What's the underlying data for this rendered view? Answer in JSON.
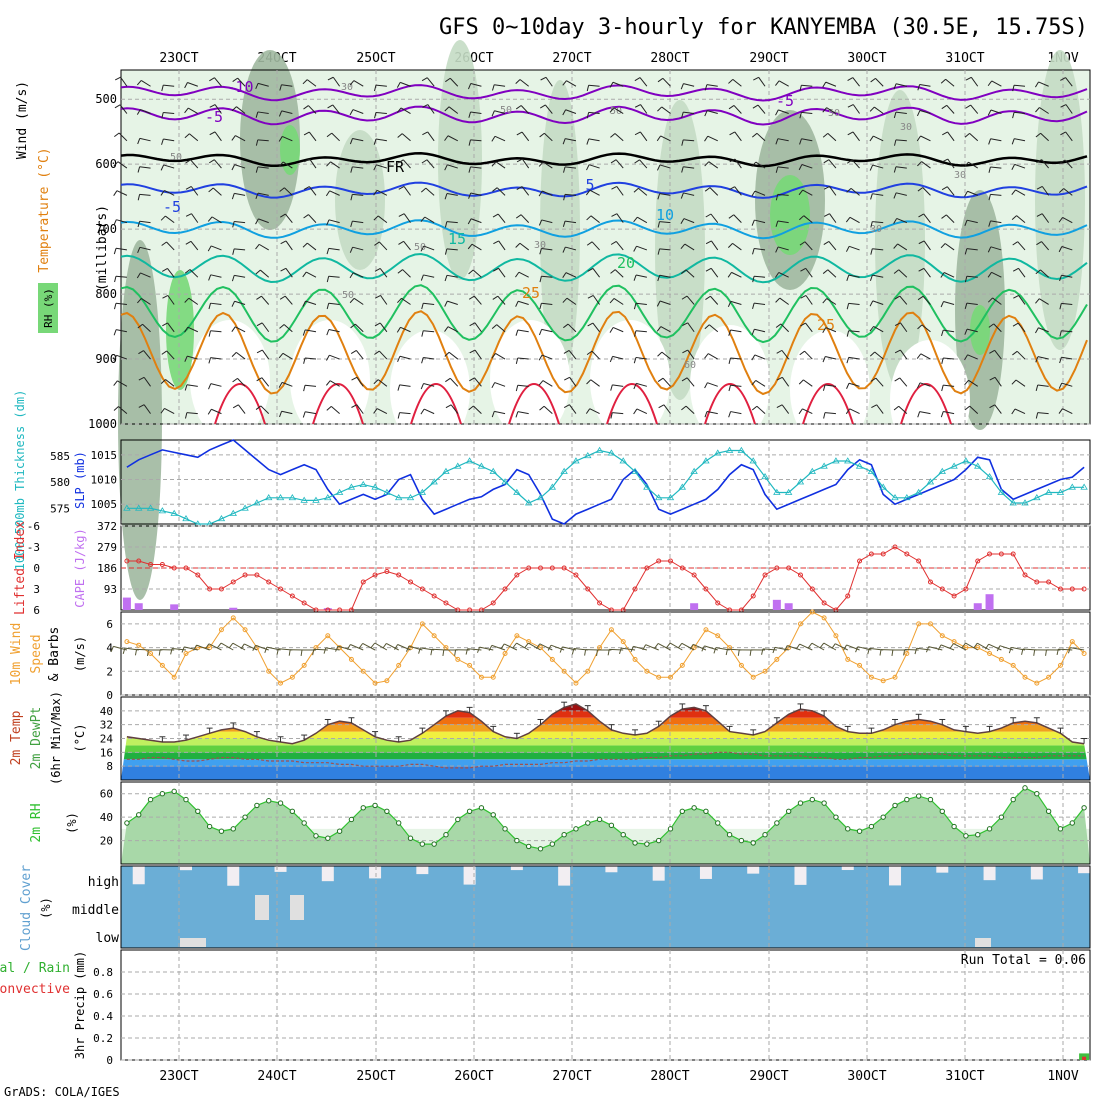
{
  "title": "GFS 0~10day 3-hourly for KANYEMBA (30.5E, 15.75S)",
  "credit": "GrADS: COLA/IGES",
  "days": [
    "23OCT",
    "24OCT",
    "25OCT",
    "26OCT",
    "27OCT",
    "28OCT",
    "29OCT",
    "30OCT",
    "31OCT",
    "1NOV"
  ],
  "colors": {
    "rh_light": "#e6f4e6",
    "rh_mid": "#c4dcc4",
    "rh_dark": "#a0b8a0",
    "rh_green": "#78d878",
    "temp_purple": "#8000c0",
    "temp_blue": "#2040e0",
    "temp_cyan": "#10a0e0",
    "temp_teal": "#10b8a0",
    "temp_green": "#20c060",
    "temp_orange": "#e08010",
    "temp_red": "#e02040",
    "slp_blue": "#1030e0",
    "thick_cyan": "#20b8c0",
    "li_red": "#e03030",
    "cape_purple": "#c070f0",
    "wind_orange": "#f0a030",
    "cloud_blue": "#6baed6",
    "rh2m_green": "#30c030"
  },
  "panels": {
    "upper_air": {
      "ylabel_rh": "RH (%)",
      "ylabel_temp": "Temperature (°C)",
      "ylabel_wind": "Wind (m/s)",
      "ylabel_p": "(millibars)",
      "p_ticks": [
        "500",
        "600",
        "700",
        "800",
        "900",
        "1000"
      ],
      "contour_labels": [
        "-10",
        "-5",
        "-5",
        "FR",
        "5",
        "-5",
        "10",
        "15",
        "20",
        "25",
        "25",
        "30",
        "50",
        "50",
        "50",
        "30",
        "30",
        "30",
        "50",
        "50",
        "60",
        "50",
        "30"
      ]
    },
    "slp": {
      "ylabel_thick": "1000-500mb Thickness (dm)",
      "ylabel_slp": "SLP (mb)",
      "thick_ticks": [
        "585",
        "580",
        "575"
      ],
      "slp_ticks": [
        "1015",
        "1010",
        "1005"
      ]
    },
    "cape": {
      "ylabel_li": "Lifted Index",
      "ylabel_cape": "CAPE (J/kg)",
      "li_ticks": [
        "-6",
        "-3",
        "0",
        "3",
        "6"
      ],
      "cape_ticks": [
        "372",
        "279",
        "186",
        "93"
      ]
    },
    "wind10m": {
      "ylabel1": "10m Wind",
      "ylabel2": "Speed",
      "ylabel3": "& Barbs",
      "ylabel_unit": "(m/s)",
      "ticks": [
        "6",
        "4",
        "2",
        "0"
      ]
    },
    "temp2m": {
      "ylabel1": "2m Temp",
      "ylabel2": "2m DewPt",
      "ylabel3": "(6hr Min/Max)",
      "ylabel_unit": "(°C)",
      "ticks": [
        "40",
        "32",
        "24",
        "16",
        "8"
      ]
    },
    "rh2m": {
      "ylabel": "2m RH",
      "ylabel_unit": "(%)",
      "ticks": [
        "60",
        "40",
        "20"
      ]
    },
    "cloud": {
      "ylabel": "Cloud Cover",
      "ylabel_unit": "(%)",
      "levels": [
        "high",
        "middle",
        "low"
      ]
    },
    "precip": {
      "ylabel1": "Total / Rain",
      "ylabel2": "Convective",
      "ylabel3": "3hr Precip (mm)",
      "ticks": [
        "0.8",
        "0.6",
        "0.4",
        "0.2",
        "0"
      ],
      "run_total": "Run Total = 0.06"
    }
  },
  "chart_data": [
    {
      "type": "line",
      "title": "SLP (mb)",
      "x_unit": "3-hourly steps from 22 Oct 12Z",
      "ylim": [
        1001,
        1018
      ],
      "series": [
        {
          "name": "SLP (mb)",
          "values": [
            1012.5,
            1014,
            1015,
            1016,
            1015.5,
            1015,
            1014.5,
            1016,
            1017,
            1018,
            1016,
            1014,
            1012,
            1011,
            1012,
            1013,
            1012,
            1008,
            1005,
            1006,
            1007,
            1006,
            1007,
            1010,
            1011,
            1006,
            1003,
            1004,
            1005,
            1006,
            1006.5,
            1008,
            1009,
            1012,
            1011,
            1007,
            1002,
            1001,
            1003,
            1004,
            1005,
            1006,
            1010,
            1012,
            1009,
            1004,
            1003,
            1004,
            1005,
            1006,
            1008,
            1011,
            1013,
            1012,
            1007,
            1004,
            1005,
            1006,
            1007,
            1008,
            1009,
            1012,
            1014,
            1013,
            1007,
            1005,
            1006,
            1007,
            1008,
            1009,
            1010,
            1012,
            1014.5,
            1014,
            1008,
            1006,
            1007,
            1008,
            1009,
            1010,
            1010.5,
            1012.5
          ]
        }
      ]
    },
    {
      "type": "line",
      "title": "1000-500mb Thickness (dm)",
      "ylim": [
        572,
        588
      ],
      "series": [
        {
          "name": "1000-500mb Thickness (dm)",
          "values": [
            575,
            575,
            575,
            574.5,
            574,
            573,
            572,
            572,
            573,
            574,
            575,
            576,
            577,
            577,
            577,
            576.5,
            576.5,
            577,
            578,
            579,
            579.5,
            579,
            578,
            577,
            577,
            578,
            580,
            582,
            583,
            584,
            583,
            582,
            580,
            578,
            576,
            577,
            579,
            582,
            584,
            585,
            586,
            585.5,
            584,
            582,
            579,
            577,
            577,
            579,
            582,
            584,
            585.5,
            586,
            586,
            584,
            581,
            578,
            578,
            580,
            582,
            583,
            584,
            584,
            583,
            582,
            579,
            577,
            577,
            578,
            580,
            582,
            583,
            584,
            583,
            581,
            578,
            576,
            576,
            577,
            578,
            578,
            579,
            579
          ]
        }
      ]
    },
    {
      "type": "bar",
      "title": "CAPE (J/kg)",
      "ylim": [
        0,
        372
      ],
      "series": [
        {
          "name": "CAPE (J/kg)",
          "values": [
            55,
            30,
            0,
            0,
            25,
            0,
            0,
            0,
            0,
            10,
            0,
            0,
            0,
            0,
            0,
            0,
            0,
            8,
            0,
            0,
            0,
            0,
            0,
            0,
            0,
            0,
            0,
            0,
            0,
            0,
            0,
            0,
            0,
            0,
            0,
            0,
            0,
            0,
            0,
            0,
            0,
            0,
            0,
            0,
            0,
            0,
            0,
            0,
            30,
            0,
            0,
            0,
            0,
            0,
            0,
            45,
            30,
            0,
            0,
            0,
            0,
            0,
            0,
            0,
            0,
            0,
            0,
            0,
            0,
            0,
            0,
            0,
            30,
            70,
            0,
            0,
            0,
            0,
            0,
            0,
            0,
            0
          ]
        }
      ]
    },
    {
      "type": "line",
      "title": "Lifted Index",
      "ylim": [
        -6,
        6
      ],
      "series": [
        {
          "name": "Lifted Index",
          "values": [
            -1,
            -1,
            -0.5,
            -0.5,
            0,
            0,
            1,
            3,
            3,
            2,
            1,
            1,
            2,
            3,
            4,
            5,
            6,
            6,
            6,
            6,
            2,
            1,
            0.5,
            1,
            2,
            3,
            4,
            5,
            6,
            6,
            6,
            5,
            3,
            1,
            0,
            0,
            0,
            0,
            1,
            3,
            5,
            6,
            6,
            3,
            0,
            -1,
            -1,
            0,
            1,
            3,
            5,
            6,
            6,
            4,
            1,
            0,
            0,
            1,
            3,
            5,
            6,
            4,
            -1,
            -2,
            -2,
            -3,
            -2,
            -1,
            2,
            3,
            4,
            3,
            -1,
            -2,
            -2,
            -2,
            1,
            2,
            2,
            3,
            3,
            3
          ]
        }
      ]
    },
    {
      "type": "line",
      "title": "10m Wind Speed (m/s)",
      "ylim": [
        0,
        7
      ],
      "series": [
        {
          "name": "10m Wind Speed (m/s)",
          "values": [
            4.5,
            4.2,
            3.5,
            2.5,
            1.5,
            3.5,
            4,
            4,
            5.5,
            6.5,
            5.5,
            4,
            2,
            1,
            1.5,
            2.5,
            4,
            5,
            4,
            3,
            2,
            1,
            1.2,
            2.5,
            4,
            6,
            5,
            4,
            3,
            2.5,
            1.5,
            1.5,
            3.5,
            5,
            4.5,
            4,
            3,
            2,
            1,
            2,
            4,
            5.5,
            4.5,
            3,
            2,
            1.5,
            1.5,
            2.5,
            4,
            5.5,
            5,
            4,
            2.5,
            1.5,
            2,
            3,
            4,
            6,
            7,
            6.5,
            5,
            3,
            2.5,
            1.5,
            1.2,
            1.5,
            3.5,
            6,
            6,
            5,
            4.5,
            4,
            4,
            3.5,
            3,
            2.5,
            1.5,
            1,
            1.5,
            2.5,
            4.5,
            3.5
          ]
        }
      ]
    },
    {
      "type": "area",
      "title": "2m Temp (°C)",
      "ylim": [
        0,
        48
      ],
      "series": [
        {
          "name": "2m Temp (°C)",
          "values": [
            25,
            24,
            23,
            22,
            22,
            23,
            25,
            27,
            29,
            30,
            28,
            25,
            23,
            22,
            21,
            23,
            27,
            32,
            34,
            33,
            29,
            25,
            23,
            22,
            23,
            27,
            32,
            37,
            40,
            39,
            34,
            28,
            25,
            24,
            27,
            32,
            38,
            42,
            44,
            40,
            34,
            29,
            27,
            26,
            27,
            31,
            37,
            41,
            42,
            40,
            34,
            28,
            27,
            26,
            28,
            33,
            38,
            41,
            40,
            37,
            31,
            28,
            27,
            27,
            29,
            32,
            34,
            35,
            34,
            32,
            29,
            28,
            27,
            28,
            30,
            33,
            34,
            33,
            30,
            27,
            22,
            21
          ]
        },
        {
          "name": "2m DewPt (°C)",
          "values": [
            12,
            12,
            13,
            13,
            12,
            11,
            11,
            12,
            13,
            13,
            12,
            12,
            11,
            11,
            11,
            10,
            10,
            10,
            9,
            9,
            8,
            8,
            8,
            8,
            9,
            9,
            8,
            7,
            7,
            7,
            8,
            8,
            9,
            9,
            9,
            9,
            10,
            10,
            11,
            11,
            12,
            12,
            12,
            12,
            13,
            13,
            14,
            14,
            15,
            15,
            16,
            16,
            15,
            15,
            14,
            14,
            14,
            14,
            13,
            13,
            12,
            12,
            13,
            13,
            14,
            14,
            15,
            15,
            15,
            15,
            14,
            14,
            14,
            14,
            13,
            13,
            13,
            13,
            14,
            14,
            14,
            14
          ]
        }
      ]
    },
    {
      "type": "area",
      "title": "2m RH (%)",
      "ylim": [
        0,
        70
      ],
      "series": [
        {
          "name": "2m RH (%)",
          "values": [
            35,
            42,
            55,
            60,
            62,
            55,
            45,
            32,
            28,
            30,
            40,
            50,
            54,
            52,
            45,
            35,
            24,
            22,
            28,
            38,
            48,
            50,
            45,
            35,
            22,
            17,
            17,
            25,
            38,
            45,
            48,
            42,
            30,
            20,
            15,
            13,
            17,
            25,
            30,
            35,
            38,
            33,
            25,
            18,
            17,
            20,
            30,
            45,
            48,
            45,
            35,
            25,
            20,
            18,
            25,
            35,
            45,
            52,
            55,
            52,
            40,
            30,
            28,
            32,
            40,
            50,
            55,
            58,
            55,
            45,
            32,
            24,
            25,
            30,
            40,
            55,
            65,
            60,
            45,
            30,
            35,
            48
          ]
        }
      ]
    },
    {
      "type": "bar",
      "title": "3hr Precip (mm)",
      "ylim": [
        0,
        1
      ],
      "series": [
        {
          "name": "Total / Rain",
          "values": [
            0,
            0,
            0,
            0,
            0,
            0,
            0,
            0,
            0,
            0,
            0,
            0,
            0,
            0,
            0,
            0,
            0,
            0,
            0,
            0,
            0,
            0,
            0,
            0,
            0,
            0,
            0,
            0,
            0,
            0,
            0,
            0,
            0,
            0,
            0,
            0,
            0,
            0,
            0,
            0,
            0,
            0,
            0,
            0,
            0,
            0,
            0,
            0,
            0,
            0,
            0,
            0,
            0,
            0,
            0,
            0,
            0,
            0,
            0,
            0,
            0,
            0,
            0,
            0,
            0,
            0,
            0,
            0,
            0,
            0,
            0,
            0,
            0,
            0,
            0,
            0,
            0,
            0,
            0,
            0,
            0,
            0.06
          ]
        },
        {
          "name": "Convective",
          "values": [
            0,
            0,
            0,
            0,
            0,
            0,
            0,
            0,
            0,
            0,
            0,
            0,
            0,
            0,
            0,
            0,
            0,
            0,
            0,
            0,
            0,
            0,
            0,
            0,
            0,
            0,
            0,
            0,
            0,
            0,
            0,
            0,
            0,
            0,
            0,
            0,
            0,
            0,
            0,
            0,
            0,
            0,
            0,
            0,
            0,
            0,
            0,
            0,
            0,
            0,
            0,
            0,
            0,
            0,
            0,
            0,
            0,
            0,
            0,
            0,
            0,
            0,
            0,
            0,
            0,
            0,
            0,
            0,
            0,
            0,
            0,
            0,
            0,
            0,
            0,
            0,
            0,
            0,
            0,
            0,
            0,
            0.03
          ]
        }
      ]
    }
  ]
}
